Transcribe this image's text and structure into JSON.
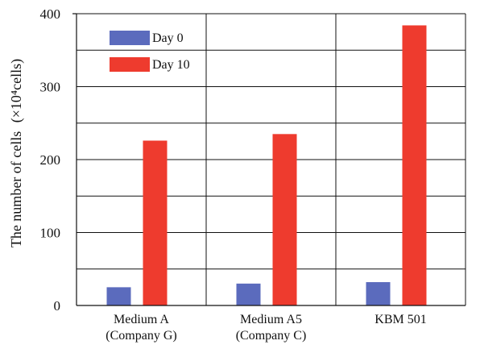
{
  "chart_data": {
    "type": "bar",
    "title": "",
    "xlabel": "",
    "ylabel": "The number of cells",
    "ylabel_unit": "(×10⁴cells)",
    "ylim": [
      0,
      400
    ],
    "yticks": [
      0,
      100,
      200,
      300,
      400
    ],
    "grid": true,
    "legend_position": "top-left",
    "categories": [
      {
        "line1": "Medium A",
        "line2": "(Company G)"
      },
      {
        "line1": "Medium A5",
        "line2": "(Company C)"
      },
      {
        "line1": "KBM 501",
        "line2": ""
      }
    ],
    "series": [
      {
        "name": "Day 0",
        "color": "#5b6bbd",
        "values": [
          25,
          30,
          32
        ]
      },
      {
        "name": "Day 10",
        "color": "#ee3b2e",
        "values": [
          226,
          235,
          384
        ]
      }
    ]
  }
}
